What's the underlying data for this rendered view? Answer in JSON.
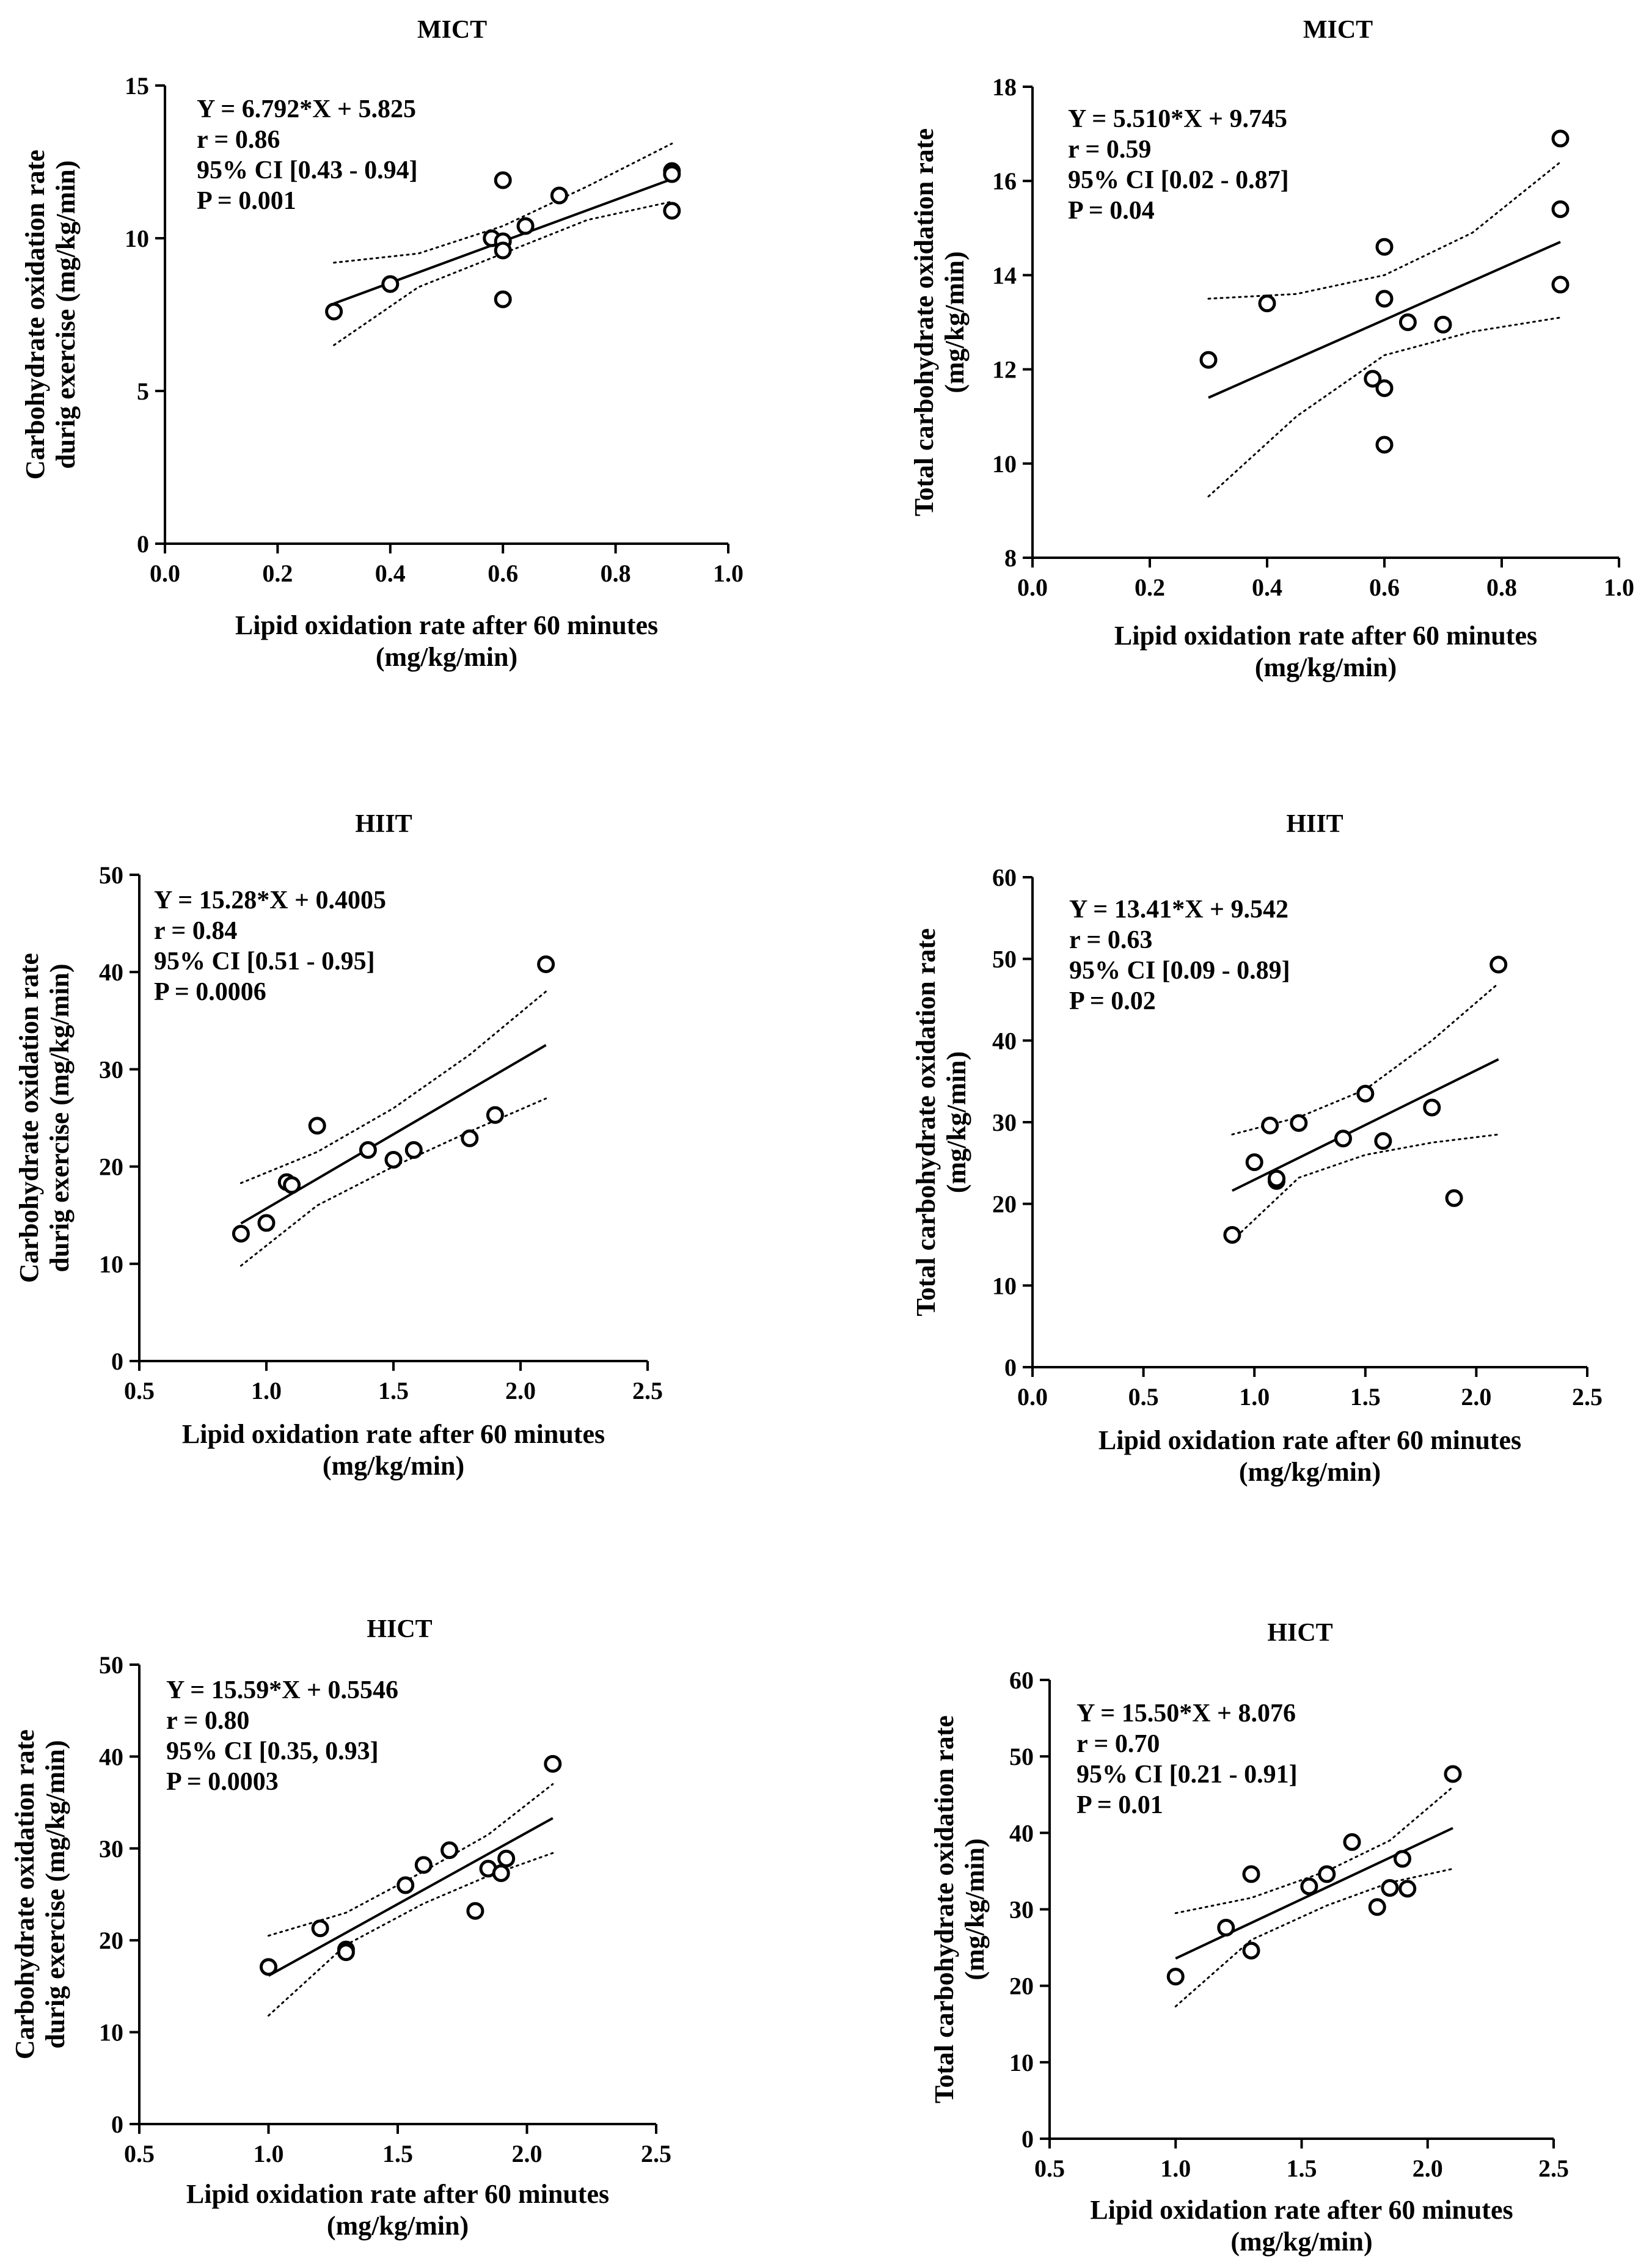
{
  "chart_data": [
    {
      "type": "scatter",
      "title": "MICT",
      "xlabel": [
        "Lipid oxidation rate after 60 minutes",
        "(mg/kg/min)"
      ],
      "ylabel": [
        "Carbohydrate oxidation rate",
        "durig exercise (mg/kg/min)"
      ],
      "xlim": [
        0.0,
        1.0
      ],
      "ylim": [
        0,
        15
      ],
      "xticks": [
        0.0,
        0.2,
        0.4,
        0.6,
        0.8,
        1.0
      ],
      "xtick_labels": [
        "0.0",
        "0.2",
        "0.4",
        "0.6",
        "0.8",
        "1.0"
      ],
      "yticks": [
        0,
        5,
        10,
        15
      ],
      "ytick_labels": [
        "0",
        "5",
        "10",
        "15"
      ],
      "fit": {
        "slope": 6.792,
        "intercept": 5.825,
        "x_range": [
          0.3,
          0.9
        ]
      },
      "ci_band": {
        "x": [
          0.3,
          0.45,
          0.6,
          0.75,
          0.9
        ],
        "lower": [
          6.5,
          8.4,
          9.5,
          10.6,
          11.2
        ],
        "upper": [
          9.2,
          9.5,
          10.4,
          11.7,
          13.1
        ]
      },
      "points": [
        {
          "x": 0.3,
          "y": 7.6
        },
        {
          "x": 0.4,
          "y": 8.5
        },
        {
          "x": 0.58,
          "y": 10.0
        },
        {
          "x": 0.6,
          "y": 9.9
        },
        {
          "x": 0.6,
          "y": 9.6
        },
        {
          "x": 0.6,
          "y": 11.9
        },
        {
          "x": 0.6,
          "y": 8.0
        },
        {
          "x": 0.64,
          "y": 10.4
        },
        {
          "x": 0.7,
          "y": 11.4
        },
        {
          "x": 0.9,
          "y": 12.2
        },
        {
          "x": 0.9,
          "y": 12.1
        },
        {
          "x": 0.9,
          "y": 10.9
        }
      ],
      "annotation": [
        "Y = 6.792*X + 5.825",
        "r = 0.86",
        "95% CI [0.43 - 0.94]",
        "P = 0.001"
      ]
    },
    {
      "type": "scatter",
      "title": "MICT",
      "xlabel": [
        "Lipid oxidation rate after 60 minutes",
        "(mg/kg/min)"
      ],
      "ylabel": [
        "Total carbohydrate oxidation rate",
        "(mg/kg/min)"
      ],
      "xlim": [
        0.0,
        1.0
      ],
      "ylim": [
        8,
        18
      ],
      "xticks": [
        0.0,
        0.2,
        0.4,
        0.6,
        0.8,
        1.0
      ],
      "xtick_labels": [
        "0.0",
        "0.2",
        "0.4",
        "0.6",
        "0.8",
        "1.0"
      ],
      "yticks": [
        8,
        10,
        12,
        14,
        16,
        18
      ],
      "ytick_labels": [
        "8",
        "10",
        "12",
        "14",
        "16",
        "18"
      ],
      "fit": {
        "slope": 5.51,
        "intercept": 9.745,
        "x_range": [
          0.3,
          0.9
        ]
      },
      "ci_band": {
        "x": [
          0.3,
          0.45,
          0.6,
          0.75,
          0.9
        ],
        "lower": [
          9.3,
          11.0,
          12.3,
          12.8,
          13.1
        ],
        "upper": [
          13.5,
          13.6,
          14.0,
          14.9,
          16.4
        ]
      },
      "points": [
        {
          "x": 0.3,
          "y": 12.2
        },
        {
          "x": 0.4,
          "y": 13.4
        },
        {
          "x": 0.58,
          "y": 11.8
        },
        {
          "x": 0.6,
          "y": 11.6
        },
        {
          "x": 0.6,
          "y": 10.4
        },
        {
          "x": 0.6,
          "y": 14.6
        },
        {
          "x": 0.6,
          "y": 13.5
        },
        {
          "x": 0.64,
          "y": 13.0
        },
        {
          "x": 0.7,
          "y": 12.95
        },
        {
          "x": 0.9,
          "y": 16.9
        },
        {
          "x": 0.9,
          "y": 15.4
        },
        {
          "x": 0.9,
          "y": 13.8
        }
      ],
      "annotation": [
        "Y = 5.510*X + 9.745",
        "r = 0.59",
        "95% CI [0.02 - 0.87]",
        "P = 0.04"
      ]
    },
    {
      "type": "scatter",
      "title": "HIIT",
      "xlabel": [
        "Lipid oxidation rate after 60 minutes",
        "(mg/kg/min)"
      ],
      "ylabel": [
        "Carbohydrate oxidation rate",
        "durig exercise (mg/kg/min)"
      ],
      "xlim": [
        0.5,
        2.5
      ],
      "ylim": [
        0,
        50
      ],
      "xticks": [
        0.5,
        1.0,
        1.5,
        2.0,
        2.5
      ],
      "xtick_labels": [
        "0.5",
        "1.0",
        "1.5",
        "2.0",
        "2.5"
      ],
      "yticks": [
        0,
        10,
        20,
        30,
        40,
        50
      ],
      "ytick_labels": [
        "0",
        "10",
        "20",
        "30",
        "40",
        "50"
      ],
      "fit": {
        "slope": 15.28,
        "intercept": 0.4005,
        "x_range": [
          0.9,
          2.1
        ]
      },
      "ci_band": {
        "x": [
          0.9,
          1.2,
          1.5,
          1.8,
          2.1
        ],
        "lower": [
          9.8,
          16.0,
          20.0,
          23.6,
          27.0
        ],
        "upper": [
          18.3,
          21.5,
          26.0,
          31.5,
          38.0
        ]
      },
      "points": [
        {
          "x": 0.9,
          "y": 13.1
        },
        {
          "x": 1.0,
          "y": 14.2
        },
        {
          "x": 1.08,
          "y": 18.4
        },
        {
          "x": 1.1,
          "y": 18.1
        },
        {
          "x": 1.2,
          "y": 24.2
        },
        {
          "x": 1.4,
          "y": 21.7
        },
        {
          "x": 1.5,
          "y": 20.7
        },
        {
          "x": 1.58,
          "y": 21.7
        },
        {
          "x": 1.8,
          "y": 22.9
        },
        {
          "x": 1.9,
          "y": 25.3
        },
        {
          "x": 2.1,
          "y": 40.8
        }
      ],
      "annotation": [
        "Y = 15.28*X + 0.4005",
        "r = 0.84",
        "95% CI [0.51 - 0.95]",
        "P = 0.0006"
      ]
    },
    {
      "type": "scatter",
      "title": "HIIT",
      "xlabel": [
        "Lipid oxidation rate after 60 minutes",
        "(mg/kg/min)"
      ],
      "ylabel": [
        "Total carbohydrate oxidation rate",
        "(mg/kg/min)"
      ],
      "xlim": [
        0.0,
        2.5
      ],
      "ylim": [
        0,
        60
      ],
      "xticks": [
        0.0,
        0.5,
        1.0,
        1.5,
        2.0,
        2.5
      ],
      "xtick_labels": [
        "0.0",
        "0.5",
        "1.0",
        "1.5",
        "2.0",
        "2.5"
      ],
      "yticks": [
        0,
        10,
        20,
        30,
        40,
        50,
        60
      ],
      "ytick_labels": [
        "0",
        "10",
        "20",
        "30",
        "40",
        "50",
        "60"
      ],
      "fit": {
        "slope": 13.41,
        "intercept": 9.542,
        "x_range": [
          0.9,
          2.1
        ]
      },
      "ci_band": {
        "x": [
          0.9,
          1.2,
          1.5,
          1.8,
          2.1
        ],
        "lower": [
          15.5,
          23.2,
          26.0,
          27.5,
          28.5
        ],
        "upper": [
          28.5,
          30.6,
          34.0,
          40.0,
          47.0
        ]
      },
      "points": [
        {
          "x": 0.9,
          "y": 16.2
        },
        {
          "x": 1.0,
          "y": 25.1
        },
        {
          "x": 1.07,
          "y": 29.6
        },
        {
          "x": 1.1,
          "y": 22.8
        },
        {
          "x": 1.1,
          "y": 23.1
        },
        {
          "x": 1.2,
          "y": 29.9
        },
        {
          "x": 1.4,
          "y": 28.0
        },
        {
          "x": 1.5,
          "y": 33.5
        },
        {
          "x": 1.58,
          "y": 27.7
        },
        {
          "x": 1.8,
          "y": 31.8
        },
        {
          "x": 1.9,
          "y": 20.7
        },
        {
          "x": 2.1,
          "y": 49.3
        }
      ],
      "annotation": [
        "Y = 13.41*X + 9.542",
        "r = 0.63",
        "95% CI [0.09 - 0.89]",
        "P = 0.02"
      ]
    },
    {
      "type": "scatter",
      "title": "HICT",
      "xlabel": [
        "Lipid oxidation rate after 60 minutes",
        "(mg/kg/min)"
      ],
      "ylabel": [
        "Carbohydrate oxidation rate",
        "durig exercise (mg/kg/min)"
      ],
      "xlim": [
        0.5,
        2.5
      ],
      "ylim": [
        0,
        50
      ],
      "xticks": [
        0.5,
        1.0,
        1.5,
        2.0,
        2.5
      ],
      "xtick_labels": [
        "0.5",
        "1.0",
        "1.5",
        "2.0",
        "2.5"
      ],
      "yticks": [
        0,
        10,
        20,
        30,
        40,
        50
      ],
      "ytick_labels": [
        "0",
        "10",
        "20",
        "30",
        "40",
        "50"
      ],
      "fit": {
        "slope": 15.59,
        "intercept": 0.5546,
        "x_range": [
          1.0,
          2.1
        ]
      },
      "ci_band": {
        "x": [
          1.0,
          1.3,
          1.6,
          1.85,
          2.1
        ],
        "lower": [
          11.8,
          19.5,
          24.0,
          27.0,
          29.5
        ],
        "upper": [
          20.5,
          23.0,
          27.5,
          31.5,
          37.0
        ]
      },
      "points": [
        {
          "x": 1.0,
          "y": 17.1
        },
        {
          "x": 1.2,
          "y": 21.3
        },
        {
          "x": 1.3,
          "y": 19.0
        },
        {
          "x": 1.3,
          "y": 18.7
        },
        {
          "x": 1.53,
          "y": 26.0
        },
        {
          "x": 1.6,
          "y": 28.2
        },
        {
          "x": 1.7,
          "y": 29.8
        },
        {
          "x": 1.8,
          "y": 23.2
        },
        {
          "x": 1.85,
          "y": 27.8
        },
        {
          "x": 1.9,
          "y": 27.3
        },
        {
          "x": 1.92,
          "y": 28.9
        },
        {
          "x": 2.1,
          "y": 39.2
        }
      ],
      "annotation": [
        "Y = 15.59*X + 0.5546",
        "r = 0.80",
        "95% CI [0.35, 0.93]",
        "P = 0.0003"
      ]
    },
    {
      "type": "scatter",
      "title": "HICT",
      "xlabel": [
        "Lipid oxidation rate after 60 minutes",
        "(mg/kg/min)"
      ],
      "ylabel": [
        "Total carbohydrate oxidation rate",
        "(mg/kg/min)"
      ],
      "xlim": [
        0.5,
        2.5
      ],
      "ylim": [
        0,
        60
      ],
      "xticks": [
        0.5,
        1.0,
        1.5,
        2.0,
        2.5
      ],
      "xtick_labels": [
        "0.5",
        "1.0",
        "1.5",
        "2.0",
        "2.5"
      ],
      "yticks": [
        0,
        10,
        20,
        30,
        40,
        50,
        60
      ],
      "ytick_labels": [
        "0",
        "10",
        "20",
        "30",
        "40",
        "50",
        "60"
      ],
      "fit": {
        "slope": 15.5,
        "intercept": 8.076,
        "x_range": [
          1.0,
          2.1
        ]
      },
      "ci_band": {
        "x": [
          1.0,
          1.3,
          1.6,
          1.85,
          2.1
        ],
        "lower": [
          17.3,
          26.0,
          30.5,
          33.5,
          35.3
        ],
        "upper": [
          29.5,
          31.5,
          35.0,
          39.0,
          46.0
        ]
      },
      "points": [
        {
          "x": 1.0,
          "y": 21.2
        },
        {
          "x": 1.2,
          "y": 27.6
        },
        {
          "x": 1.3,
          "y": 34.6
        },
        {
          "x": 1.3,
          "y": 24.6
        },
        {
          "x": 1.53,
          "y": 33.0
        },
        {
          "x": 1.6,
          "y": 34.6
        },
        {
          "x": 1.7,
          "y": 38.8
        },
        {
          "x": 1.8,
          "y": 30.3
        },
        {
          "x": 1.85,
          "y": 32.8
        },
        {
          "x": 1.9,
          "y": 36.6
        },
        {
          "x": 1.92,
          "y": 32.7
        },
        {
          "x": 2.1,
          "y": 47.7
        }
      ],
      "annotation": [
        "Y = 15.50*X + 8.076",
        "r = 0.70",
        "95% CI [0.21 - 0.91]",
        "P = 0.01"
      ]
    }
  ]
}
